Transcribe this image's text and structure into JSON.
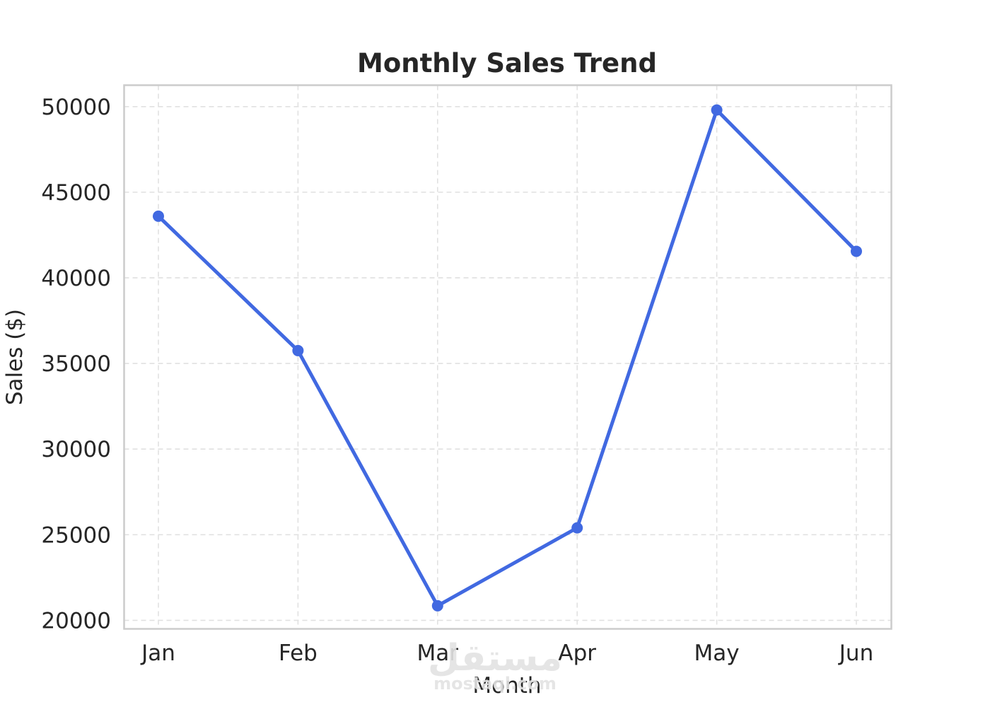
{
  "chart_data": {
    "type": "line",
    "title": "Monthly Sales Trend",
    "xlabel": "Month",
    "ylabel": "Sales ($)",
    "categories": [
      "Jan",
      "Feb",
      "Mar",
      "Apr",
      "May",
      "Jun"
    ],
    "series": [
      {
        "values": [
          43600,
          35750,
          20850,
          25400,
          49800,
          41550
        ],
        "color": "#4169e1",
        "marker": "circle"
      }
    ],
    "ylim": [
      19500,
      51250
    ],
    "yticks": [
      20000,
      25000,
      30000,
      35000,
      40000,
      45000,
      50000
    ],
    "ytick_labels": [
      "20000",
      "25000",
      "30000",
      "35000",
      "40000",
      "45000",
      "50000"
    ],
    "grid": true,
    "grid_style": "dashed",
    "legend": "none"
  },
  "watermark": {
    "logo_text": "مستقل",
    "site_text": "mostaql.com"
  }
}
